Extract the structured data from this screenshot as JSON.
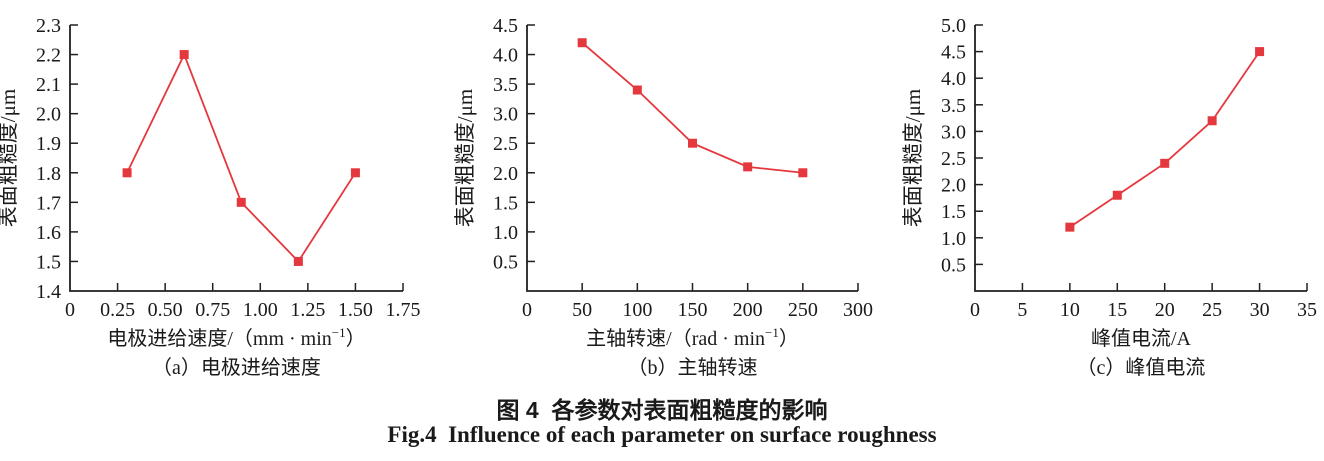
{
  "figure": {
    "title_zh": "图 4  各参数对表面粗糙度的影响",
    "title_en": "Fig.4  Influence of each parameter on surface roughness"
  },
  "colors": {
    "line": "#e5383e",
    "marker": "#e5383e",
    "axis": "#231f20",
    "text": "#1a1a1a",
    "background": "#ffffff"
  },
  "chart_data": [
    {
      "id": "a",
      "type": "line",
      "marker": "square",
      "grid": false,
      "legend": "none",
      "x": [
        0.3,
        0.6,
        0.9,
        1.2,
        1.5
      ],
      "y": [
        1.8,
        2.2,
        1.7,
        1.5,
        1.8
      ],
      "xlabel": "电极进给速度/（mm · min⁻¹）",
      "ylabel": "表面粗糙度/μm",
      "caption": "（a）电极进给速度",
      "xlim": [
        0,
        1.75
      ],
      "ylim": [
        1.4,
        2.3
      ],
      "xtick_values": [
        0,
        0.25,
        0.5,
        0.75,
        1.0,
        1.25,
        1.5,
        1.75
      ],
      "xtick_labels": [
        "0",
        "0.25",
        "0.50",
        "0.75",
        "1.00",
        "1.25",
        "1.50",
        "1.75"
      ],
      "ytick_values": [
        1.4,
        1.5,
        1.6,
        1.7,
        1.8,
        1.9,
        2.0,
        2.1,
        2.2,
        2.3
      ],
      "ytick_labels": [
        "1.4",
        "1.5",
        "1.6",
        "1.7",
        "1.8",
        "1.9",
        "2.0",
        "2.1",
        "2.2",
        "2.3"
      ]
    },
    {
      "id": "b",
      "type": "line",
      "marker": "square",
      "grid": false,
      "legend": "none",
      "x": [
        50,
        100,
        150,
        200,
        250
      ],
      "y": [
        4.2,
        3.4,
        2.5,
        2.1,
        2.0
      ],
      "xlabel": "主轴转速/（rad · min⁻¹）",
      "ylabel": "表面粗糙度/μm",
      "caption": "（b）主轴转速",
      "xlim": [
        0,
        300
      ],
      "ylim": [
        0,
        4.5
      ],
      "xtick_values": [
        0,
        50,
        100,
        150,
        200,
        250,
        300
      ],
      "xtick_labels": [
        "0",
        "50",
        "100",
        "150",
        "200",
        "250",
        "300"
      ],
      "ytick_values": [
        0.5,
        1.0,
        1.5,
        2.0,
        2.5,
        3.0,
        3.5,
        4.0,
        4.5
      ],
      "ytick_labels": [
        "0.5",
        "1.0",
        "1.5",
        "2.0",
        "2.5",
        "3.0",
        "3.5",
        "4.0",
        "4.5"
      ]
    },
    {
      "id": "c",
      "type": "line",
      "marker": "square",
      "grid": false,
      "legend": "none",
      "x": [
        10,
        15,
        20,
        25,
        30
      ],
      "y": [
        1.2,
        1.8,
        2.4,
        3.2,
        4.5
      ],
      "xlabel": "峰值电流/A",
      "ylabel": "表面粗糙度/μm",
      "caption": "（c）峰值电流",
      "xlim": [
        0,
        35
      ],
      "ylim": [
        0,
        5.0
      ],
      "xtick_values": [
        0,
        5,
        10,
        15,
        20,
        25,
        30,
        35
      ],
      "xtick_labels": [
        "0",
        "5",
        "10",
        "15",
        "20",
        "25",
        "30",
        "35"
      ],
      "ytick_values": [
        0.5,
        1.0,
        1.5,
        2.0,
        2.5,
        3.0,
        3.5,
        4.0,
        4.5,
        5.0
      ],
      "ytick_labels": [
        "0.5",
        "1.0",
        "1.5",
        "2.0",
        "2.5",
        "3.0",
        "3.5",
        "4.0",
        "4.5",
        "5.0"
      ]
    }
  ]
}
